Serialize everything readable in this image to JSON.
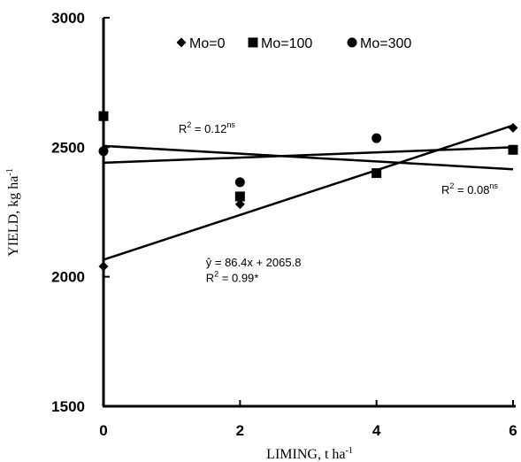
{
  "chart_data": {
    "type": "scatter",
    "xlabel": "LIMING, t ha",
    "xlabel_sup": "-1",
    "ylabel": "YIELD, kg ha",
    "ylabel_sup": "-1",
    "xlim": [
      0,
      6
    ],
    "ylim": [
      1500,
      3000
    ],
    "xticks": [
      0,
      2,
      4,
      6
    ],
    "yticks": [
      1500,
      2000,
      2500,
      3000
    ],
    "x_tick_labels": [
      "0",
      "2",
      "4",
      "6"
    ],
    "y_tick_labels": [
      "1500",
      "2000",
      "2500",
      "3000"
    ],
    "grid": false,
    "legend_position": "top",
    "series": [
      {
        "name": "Mo=0",
        "marker": "diamond",
        "x": [
          0,
          2,
          4,
          6
        ],
        "y": [
          2040,
          2280,
          2400,
          2575
        ],
        "trend": {
          "slope": 86.4,
          "intercept": 2065.8
        }
      },
      {
        "name": "Mo=100",
        "marker": "square",
        "x": [
          0,
          2,
          4,
          6
        ],
        "y": [
          2620,
          2310,
          2400,
          2490
        ],
        "trend": {
          "slope": 10,
          "intercept": 2440
        }
      },
      {
        "name": "Mo=300",
        "marker": "circle",
        "x": [
          0,
          2,
          4,
          6
        ],
        "y": [
          2485,
          2365,
          2535,
          2490
        ],
        "trend": {
          "slope": -15,
          "intercept": 2505
        }
      }
    ],
    "annotations": [
      {
        "text": "R",
        "sup1": "2",
        "mid": " = 0.12",
        "sup2": "ns",
        "x": 1.1,
        "y": 2555
      },
      {
        "text": "R",
        "sup1": "2",
        "mid": " = 0.08",
        "sup2": "ns",
        "x": 4.95,
        "y": 2320
      },
      {
        "text": "ŷ = 86.4x + 2065.8",
        "x": 1.5,
        "y": 2040
      },
      {
        "text": "R",
        "sup1": "2",
        "mid": " = 0.99*",
        "sup2": "",
        "x": 1.5,
        "y": 1980
      }
    ],
    "colors": {
      "marks": "#000000",
      "background": "#ffffff"
    }
  }
}
